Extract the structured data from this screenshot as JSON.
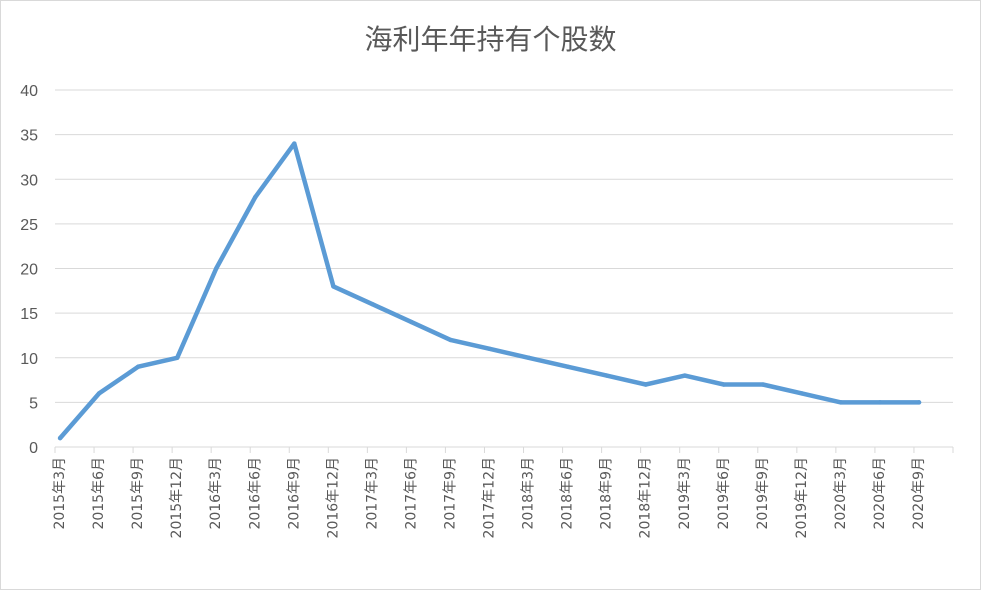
{
  "chart_data": {
    "type": "line",
    "title": "海利年年持有个股数",
    "xlabel": "",
    "ylabel": "",
    "categories": [
      "2015年3月",
      "2015年6月",
      "2015年9月",
      "2015年12月",
      "2016年3月",
      "2016年6月",
      "2016年9月",
      "2016年12月",
      "2017年3月",
      "2017年6月",
      "2017年9月",
      "2017年12月",
      "2018年3月",
      "2018年6月",
      "2018年9月",
      "2018年12月",
      "2019年3月",
      "2019年6月",
      "2019年9月",
      "2019年12月",
      "2020年3月",
      "2020年6月",
      "2020年9月"
    ],
    "series": [
      {
        "values": [
          1,
          6,
          9,
          10,
          20,
          28,
          34,
          18,
          16,
          14,
          12,
          11,
          10,
          9,
          8,
          7,
          8,
          7,
          7,
          6,
          5,
          5,
          5
        ]
      }
    ],
    "ylim": [
      0,
      40
    ],
    "yticks": [
      0,
      5,
      10,
      15,
      20,
      25,
      30,
      35,
      40
    ],
    "grid": true,
    "legend": "none",
    "colors": {
      "line": "#5b9bd5",
      "grid": "#d9d9d9",
      "text": "#595959"
    }
  }
}
